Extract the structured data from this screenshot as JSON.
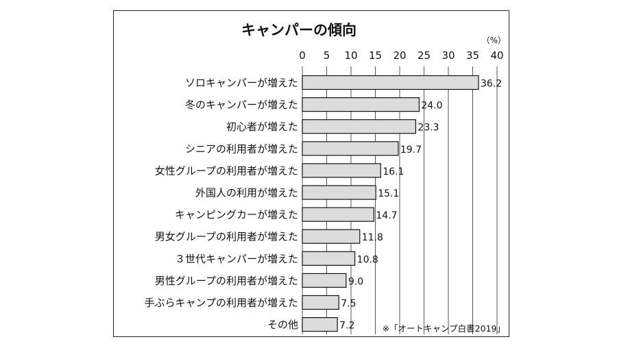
{
  "chart_data": {
    "type": "bar",
    "orientation": "horizontal",
    "title": "キャンパーの傾向",
    "unit": "（%）",
    "xlim": [
      0,
      40
    ],
    "xticks": [
      0,
      5,
      10,
      15,
      20,
      25,
      30,
      35,
      40
    ],
    "xtick_labels": [
      "0",
      "5",
      "10",
      "15",
      "20",
      "25",
      "30",
      "35",
      "40"
    ],
    "grid": true,
    "bar_color": "#dcdcdc",
    "categories": [
      "ソロキャンパーが増えた",
      "冬のキャンパーが増えた",
      "初心者が増えた",
      "シニアの利用者が増えた",
      "女性グループの利用者が増えた",
      "外国人の利用が増えた",
      "キャンピングカーが増えた",
      "男女グループの利用者が増えた",
      "３世代キャンパーが増えた",
      "男性グループの利用者が増えた",
      "手ぶらキャンプの利用者が増えた",
      "その他"
    ],
    "values": [
      36.2,
      24.0,
      23.3,
      19.7,
      16.1,
      15.1,
      14.7,
      11.8,
      10.8,
      9.0,
      7.5,
      7.2
    ],
    "value_labels": [
      "36.2",
      "24.0",
      "23.3",
      "19.7",
      "16.1",
      "15.1",
      "14.7",
      "11.8",
      "10.8",
      "9.0",
      "7.5",
      "7.2"
    ],
    "source": "※「オートキャンプ白書2019」"
  }
}
